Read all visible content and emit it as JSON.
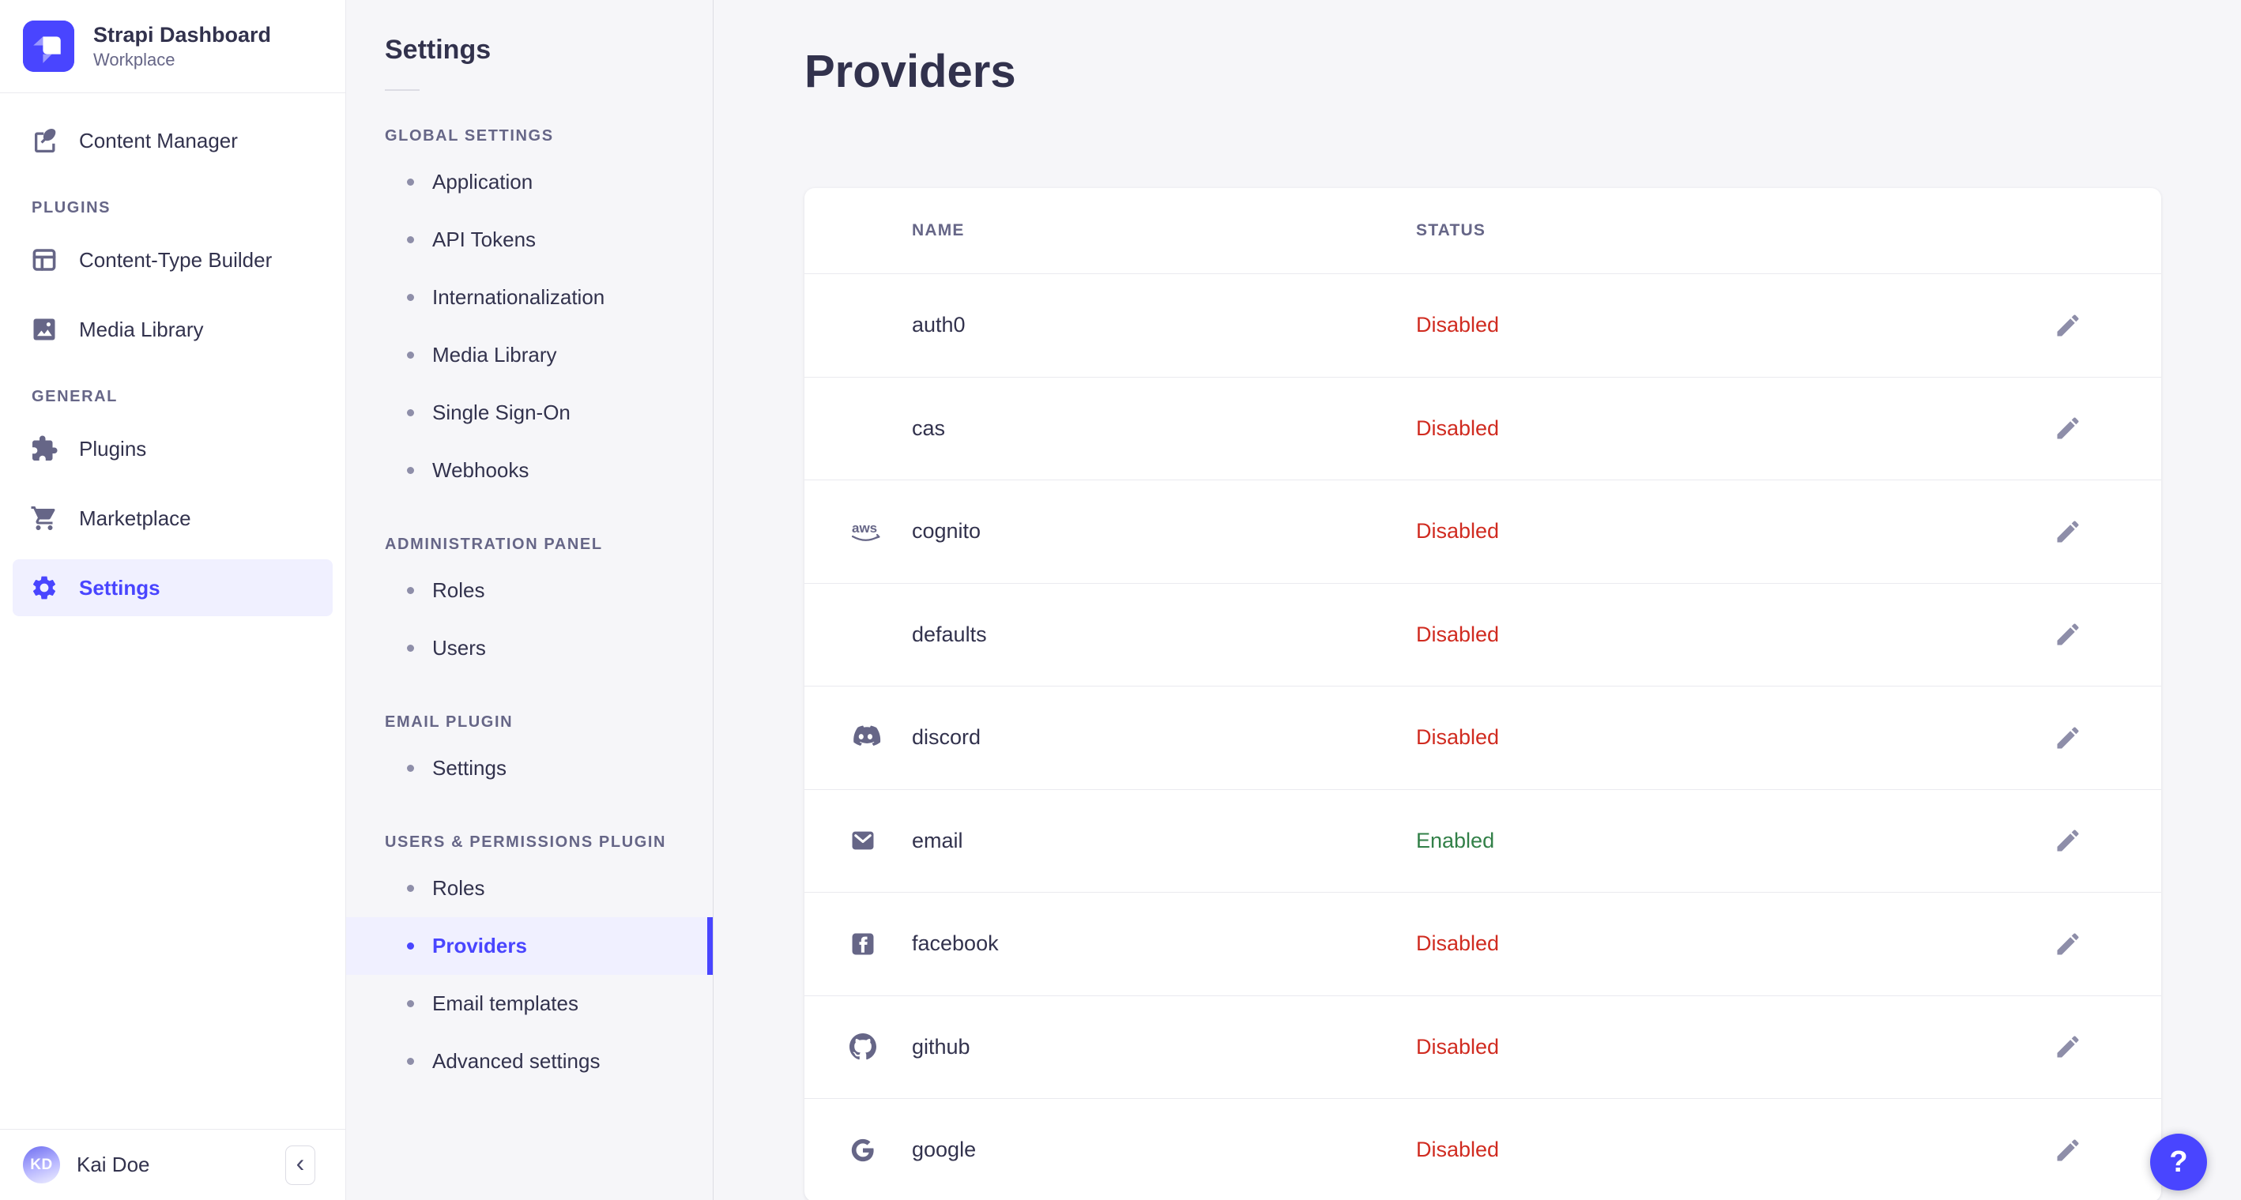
{
  "brand": {
    "title": "Strapi Dashboard",
    "subtitle": "Workplace"
  },
  "user": {
    "name": "Kai Doe",
    "initials": "KD"
  },
  "sidebar": {
    "sections": [
      {
        "label": null,
        "items": [
          {
            "label": "Content Manager",
            "icon": "content-manager",
            "selected": false
          }
        ]
      },
      {
        "label": "PLUGINS",
        "items": [
          {
            "label": "Content-Type Builder",
            "icon": "content-type-builder",
            "selected": false
          },
          {
            "label": "Media Library",
            "icon": "media-library",
            "selected": false
          }
        ]
      },
      {
        "label": "GENERAL",
        "items": [
          {
            "label": "Plugins",
            "icon": "plugins",
            "selected": false
          },
          {
            "label": "Marketplace",
            "icon": "marketplace",
            "selected": false
          },
          {
            "label": "Settings",
            "icon": "settings",
            "selected": true
          }
        ]
      }
    ],
    "collapse_glyph": "‹"
  },
  "subnav": {
    "title": "Settings",
    "sections": [
      {
        "label": "GLOBAL SETTINGS",
        "items": [
          {
            "label": "Application",
            "selected": false
          },
          {
            "label": "API Tokens",
            "selected": false
          },
          {
            "label": "Internationalization",
            "selected": false
          },
          {
            "label": "Media Library",
            "selected": false
          },
          {
            "label": "Single Sign-On",
            "selected": false
          },
          {
            "label": "Webhooks",
            "selected": false
          }
        ]
      },
      {
        "label": "ADMINISTRATION PANEL",
        "items": [
          {
            "label": "Roles",
            "selected": false
          },
          {
            "label": "Users",
            "selected": false
          }
        ]
      },
      {
        "label": "EMAIL PLUGIN",
        "items": [
          {
            "label": "Settings",
            "selected": false
          }
        ]
      },
      {
        "label": "USERS & PERMISSIONS PLUGIN",
        "items": [
          {
            "label": "Roles",
            "selected": false
          },
          {
            "label": "Providers",
            "selected": true
          },
          {
            "label": "Email templates",
            "selected": false
          },
          {
            "label": "Advanced settings",
            "selected": false
          }
        ]
      }
    ]
  },
  "main": {
    "title": "Providers",
    "table": {
      "columns": [
        "NAME",
        "STATUS"
      ],
      "rows": [
        {
          "name": "auth0",
          "icon": null,
          "status": "Disabled"
        },
        {
          "name": "cas",
          "icon": null,
          "status": "Disabled"
        },
        {
          "name": "cognito",
          "icon": "aws",
          "status": "Disabled"
        },
        {
          "name": "defaults",
          "icon": null,
          "status": "Disabled"
        },
        {
          "name": "discord",
          "icon": "discord",
          "status": "Disabled"
        },
        {
          "name": "email",
          "icon": "email",
          "status": "Enabled"
        },
        {
          "name": "facebook",
          "icon": "facebook",
          "status": "Disabled"
        },
        {
          "name": "github",
          "icon": "github",
          "status": "Disabled"
        },
        {
          "name": "google",
          "icon": "google",
          "status": "Disabled"
        }
      ]
    }
  },
  "help": {
    "label": "?"
  },
  "colors": {
    "accent": "#4945FF",
    "accent_bg": "#F0F0FF",
    "danger": "#D02B20",
    "success": "#328048",
    "text": "#32324D",
    "muted": "#666687",
    "surface": "#FFFFFF",
    "background": "#F6F6F9"
  }
}
